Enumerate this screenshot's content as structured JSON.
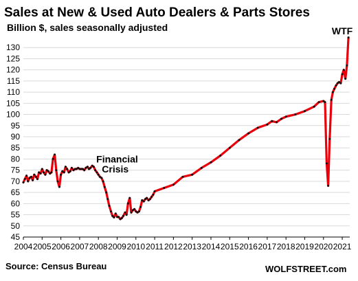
{
  "chart_data": {
    "type": "line",
    "title": "Sales at New & Used Auto Dealers & Parts Stores",
    "subtitle": "Billion $, sales seasonally adjusted",
    "ylim": [
      45,
      135
    ],
    "yticks": [
      45,
      50,
      55,
      60,
      65,
      70,
      75,
      80,
      85,
      90,
      95,
      100,
      105,
      110,
      115,
      120,
      125,
      130
    ],
    "xlim": [
      2004,
      2021.4
    ],
    "xticks": [
      "2004",
      "2005",
      "2006",
      "2007",
      "2008",
      "2009",
      "2010",
      "2011",
      "2012",
      "2013",
      "2014",
      "2015",
      "2016",
      "2017",
      "2018",
      "2019",
      "2020",
      "2021"
    ],
    "grid": true,
    "series": [
      {
        "name": "",
        "color": "#e8000b",
        "marker_color": "#111111",
        "x": [
          2004.0,
          2004.08,
          2004.17,
          2004.25,
          2004.33,
          2004.42,
          2004.5,
          2004.58,
          2004.67,
          2004.75,
          2004.83,
          2004.92,
          2005.0,
          2005.08,
          2005.17,
          2005.25,
          2005.33,
          2005.42,
          2005.5,
          2005.58,
          2005.67,
          2005.75,
          2005.83,
          2005.92,
          2006.0,
          2006.08,
          2006.17,
          2006.25,
          2006.33,
          2006.42,
          2006.5,
          2006.58,
          2006.67,
          2006.75,
          2006.83,
          2006.92,
          2007.0,
          2007.08,
          2007.17,
          2007.25,
          2007.33,
          2007.42,
          2007.5,
          2007.58,
          2007.67,
          2007.75,
          2007.83,
          2007.92,
          2008.0,
          2008.08,
          2008.17,
          2008.25,
          2008.33,
          2008.42,
          2008.5,
          2008.58,
          2008.67,
          2008.75,
          2008.83,
          2008.92,
          2009.0,
          2009.08,
          2009.17,
          2009.25,
          2009.33,
          2009.42,
          2009.5,
          2009.58,
          2009.67,
          2009.75,
          2009.83,
          2009.92,
          2010.0,
          2010.08,
          2010.17,
          2010.25,
          2010.33,
          2010.42,
          2010.5,
          2010.58,
          2010.67,
          2010.75,
          2010.83,
          2010.92,
          2011.0,
          2011.5,
          2012.0,
          2012.5,
          2013.0,
          2013.5,
          2014.0,
          2014.5,
          2015.0,
          2015.5,
          2016.0,
          2016.5,
          2017.0,
          2017.25,
          2017.5,
          2017.75,
          2018.0,
          2018.5,
          2019.0,
          2019.5,
          2019.75,
          2020.0,
          2020.08,
          2020.17,
          2020.25,
          2020.33,
          2020.42,
          2020.5,
          2020.58,
          2020.67,
          2020.75,
          2020.83,
          2020.92,
          2021.0,
          2021.08,
          2021.17,
          2021.25,
          2021.33
        ],
        "y": [
          69.5,
          71.0,
          72.5,
          70.0,
          71.5,
          72.0,
          70.5,
          73.0,
          72.0,
          71.0,
          74.0,
          73.5,
          75.5,
          74.0,
          73.0,
          75.0,
          74.5,
          73.5,
          74.0,
          80.0,
          82.0,
          75.0,
          70.0,
          67.5,
          73.0,
          74.5,
          74.0,
          76.5,
          75.5,
          74.0,
          74.5,
          76.0,
          75.0,
          75.5,
          75.5,
          76.0,
          75.5,
          75.5,
          75.5,
          75.0,
          76.0,
          76.5,
          75.5,
          76.0,
          77.0,
          76.5,
          75.0,
          74.0,
          73.0,
          72.0,
          71.5,
          70.0,
          67.5,
          65.0,
          62.0,
          59.0,
          56.5,
          54.5,
          53.8,
          55.5,
          54.0,
          54.0,
          53.0,
          53.5,
          54.5,
          56.0,
          55.0,
          60.0,
          62.5,
          56.0,
          57.0,
          57.5,
          56.5,
          56.0,
          56.5,
          58.5,
          61.5,
          61.0,
          62.0,
          62.5,
          61.5,
          62.0,
          63.0,
          64.0,
          65.5,
          67.0,
          68.5,
          72.0,
          73.0,
          76.0,
          78.5,
          81.5,
          85.0,
          88.5,
          91.5,
          94.0,
          95.5,
          97.0,
          96.5,
          98.0,
          99.0,
          100.0,
          101.5,
          103.5,
          105.5,
          106.0,
          105.5,
          78.0,
          68.0,
          89.0,
          106.5,
          110.0,
          111.5,
          113.0,
          114.0,
          114.5,
          114.0,
          118.0,
          120.0,
          116.0,
          122.0,
          134.5
        ]
      }
    ],
    "annotations": [
      {
        "text": "Financial",
        "x": 2009.0,
        "y": 78.5
      },
      {
        "text": "Crisis",
        "x": 2008.9,
        "y": 74.0
      },
      {
        "text": "WTF",
        "x": 2021.0,
        "y": 136.0
      }
    ]
  },
  "footer": {
    "source": "Source: Census Bureau",
    "brand": "WOLFSTREET.com"
  }
}
